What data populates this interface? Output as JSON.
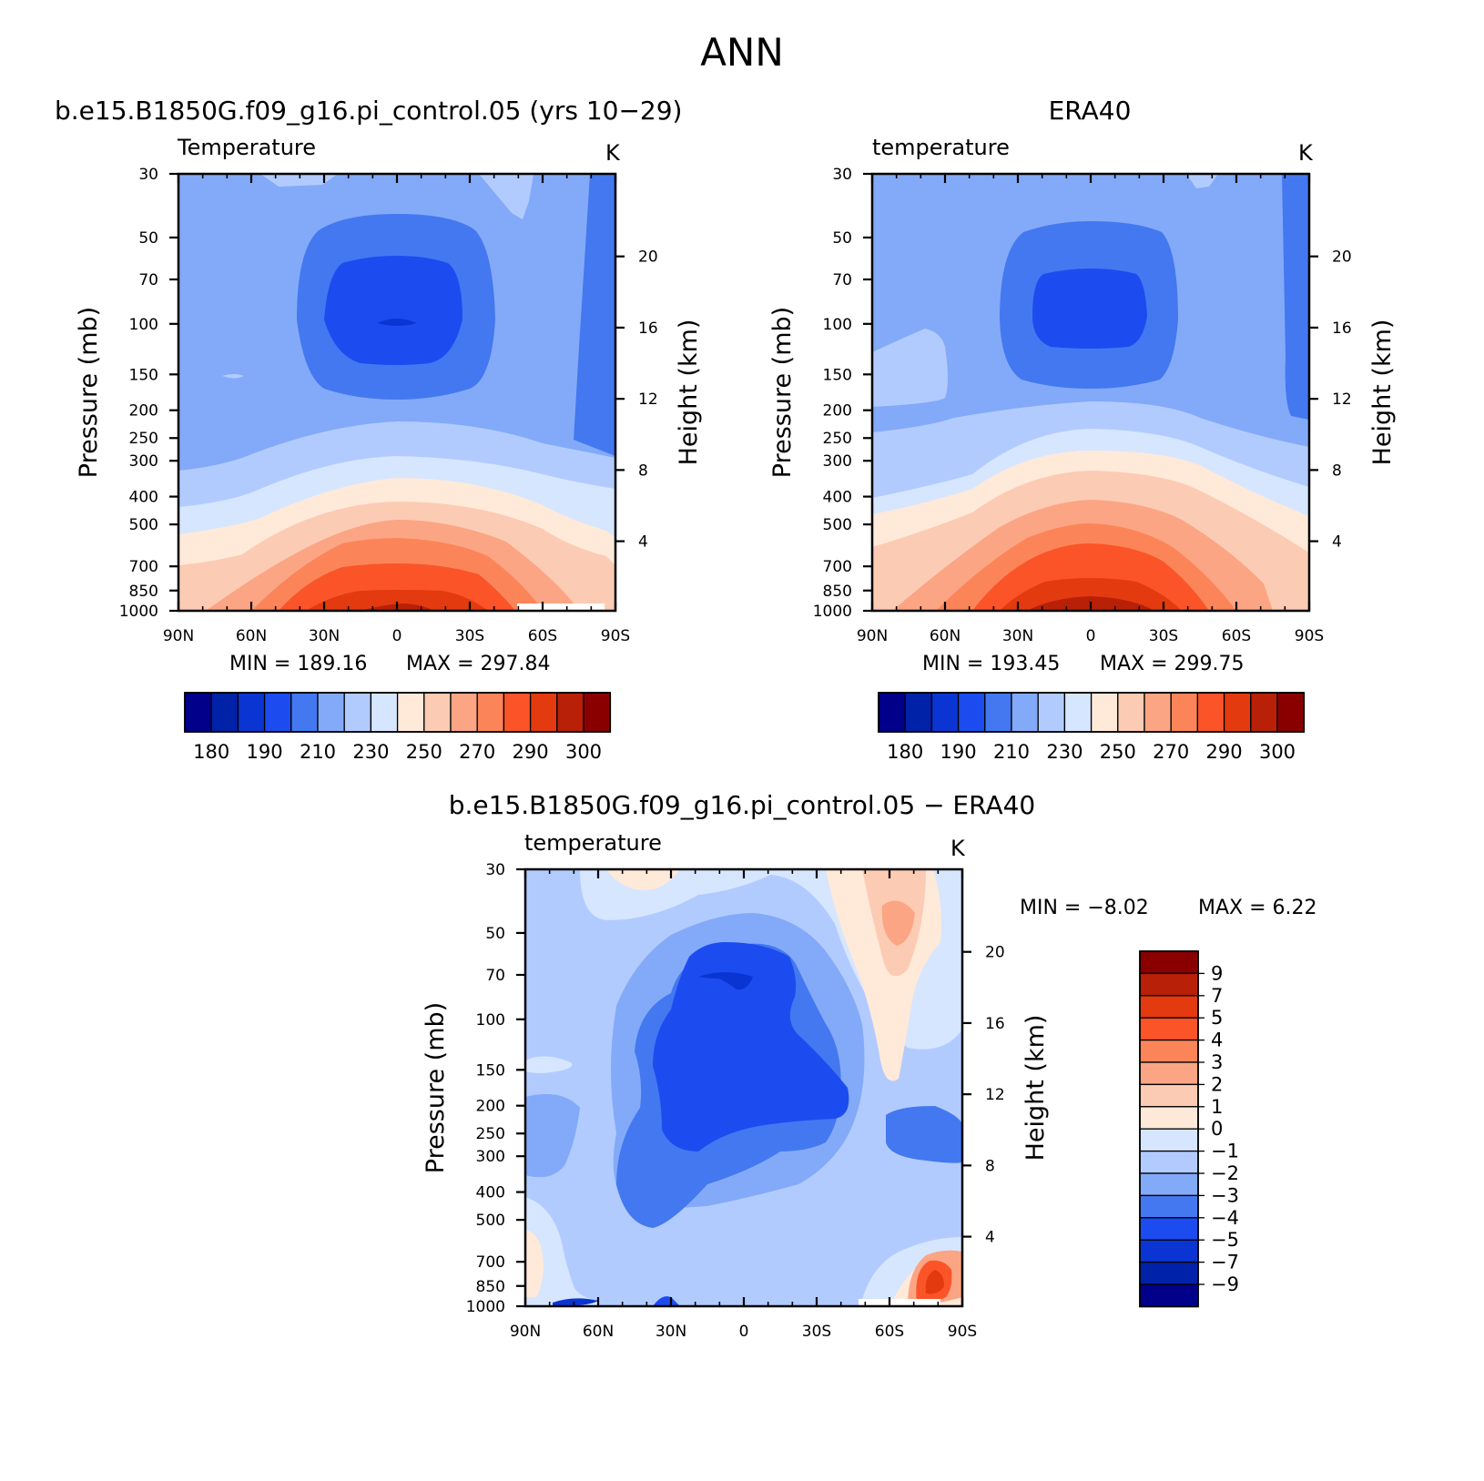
{
  "figure": {
    "title": "ANN"
  },
  "chart_data": [
    {
      "type": "contour",
      "title": "b.e15.B1850G.f09_g16.pi_control.05 (yrs 10−29)",
      "variable": "Temperature",
      "units": "K",
      "xlabel": "",
      "ylabel": "Pressure (mb)",
      "y2label": "Height (km)",
      "x_ticks": [
        "90N",
        "60N",
        "30N",
        "0",
        "30S",
        "60S",
        "90S"
      ],
      "y_ticks": [
        "30",
        "50",
        "70",
        "100",
        "150",
        "200",
        "250",
        "300",
        "400",
        "500",
        "700",
        "850",
        "1000"
      ],
      "y2_ticks": [
        "20",
        "16",
        "12",
        "8",
        "4"
      ],
      "ylim": [
        1000,
        30
      ],
      "min_label": "MIN = 189.16",
      "max_label": "MAX = 297.84",
      "min": 189.16,
      "max": 297.84,
      "colorbar_labels": [
        "180",
        "190",
        "210",
        "230",
        "250",
        "270",
        "290",
        "300"
      ],
      "levels": [
        180,
        185,
        190,
        200,
        210,
        220,
        230,
        240,
        250,
        260,
        270,
        280,
        290,
        295,
        300
      ]
    },
    {
      "type": "contour",
      "title": "ERA40",
      "variable": "temperature",
      "units": "K",
      "xlabel": "",
      "ylabel": "Pressure (mb)",
      "y2label": "Height (km)",
      "x_ticks": [
        "90N",
        "60N",
        "30N",
        "0",
        "30S",
        "60S",
        "90S"
      ],
      "y_ticks": [
        "30",
        "50",
        "70",
        "100",
        "150",
        "200",
        "250",
        "300",
        "400",
        "500",
        "700",
        "850",
        "1000"
      ],
      "y2_ticks": [
        "20",
        "16",
        "12",
        "8",
        "4"
      ],
      "ylim": [
        1000,
        30
      ],
      "min_label": "MIN = 193.45",
      "max_label": "MAX = 299.75",
      "min": 193.45,
      "max": 299.75,
      "colorbar_labels": [
        "180",
        "190",
        "210",
        "230",
        "250",
        "270",
        "290",
        "300"
      ],
      "levels": [
        180,
        185,
        190,
        200,
        210,
        220,
        230,
        240,
        250,
        260,
        270,
        280,
        290,
        295,
        300
      ]
    },
    {
      "type": "contour",
      "title": "b.e15.B1850G.f09_g16.pi_control.05 − ERA40",
      "variable": "temperature",
      "units": "K",
      "xlabel": "",
      "ylabel": "Pressure (mb)",
      "y2label": "Height (km)",
      "x_ticks": [
        "90N",
        "60N",
        "30N",
        "0",
        "30S",
        "60S",
        "90S"
      ],
      "y_ticks": [
        "30",
        "50",
        "70",
        "100",
        "150",
        "200",
        "250",
        "300",
        "400",
        "500",
        "700",
        "850",
        "1000"
      ],
      "y2_ticks": [
        "20",
        "16",
        "12",
        "8",
        "4"
      ],
      "ylim": [
        1000,
        30
      ],
      "min_label": "MIN = −8.02",
      "max_label": "MAX = 6.22",
      "min": -8.02,
      "max": 6.22,
      "colorbar_labels": [
        "9",
        "7",
        "5",
        "4",
        "3",
        "2",
        "1",
        "0",
        "−1",
        "−2",
        "−3",
        "−4",
        "−5",
        "−7",
        "−9"
      ],
      "levels": [
        -9,
        -7,
        -5,
        -4,
        -3,
        -2,
        -1,
        0,
        1,
        2,
        3,
        4,
        5,
        7,
        9
      ]
    }
  ],
  "colors": {
    "palette": [
      "#00008a",
      "#0022a8",
      "#0a35d2",
      "#1c4cf0",
      "#4478f0",
      "#83aaf8",
      "#b2cbff",
      "#d6e6ff",
      "#ffe9d9",
      "#fccbb3",
      "#fba584",
      "#fb8559",
      "#fa5428",
      "#e33a10",
      "#b82008",
      "#8a0000"
    ],
    "axis": "#000000",
    "fill_void": "#ffffff"
  }
}
